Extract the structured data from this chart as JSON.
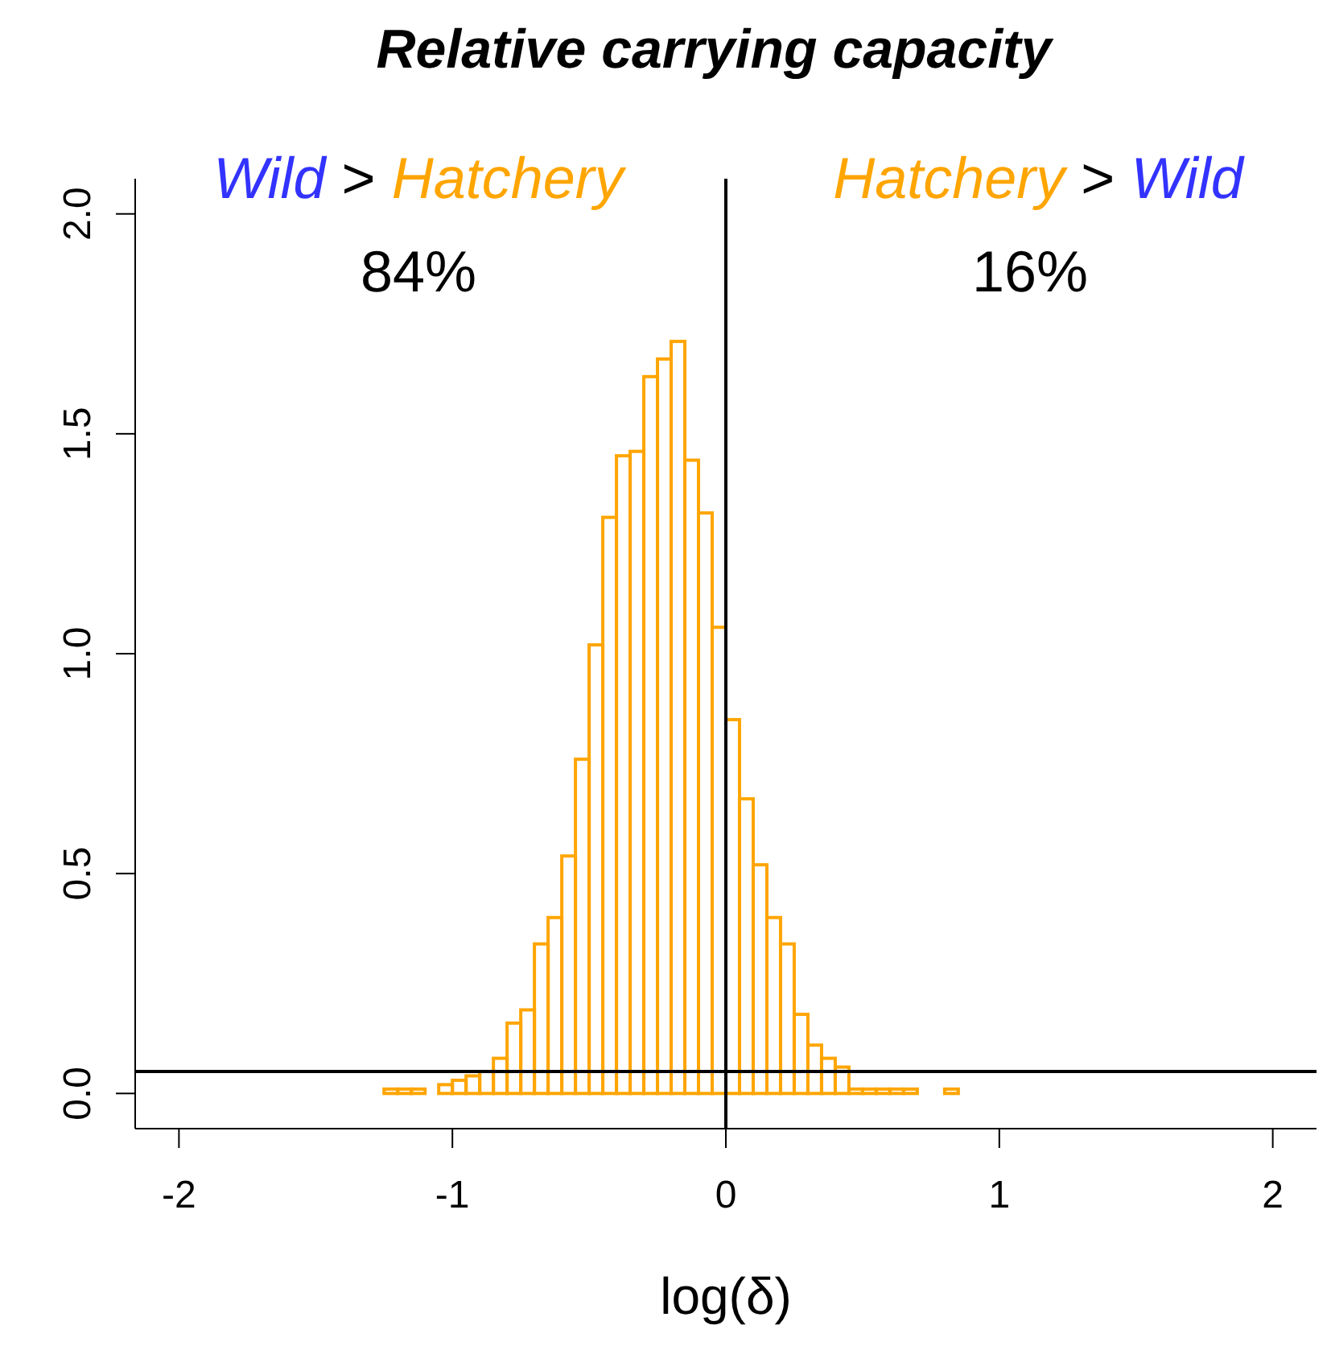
{
  "chart_data": {
    "type": "histogram",
    "title": "Relative carrying capacity",
    "xlabel": "log(δ)",
    "bins": [
      -1.25,
      -1.2,
      -1.15,
      -1.1,
      -1.05,
      -1.0,
      -0.95,
      -0.9,
      -0.85,
      -0.8,
      -0.75,
      -0.7,
      -0.65,
      -0.6,
      -0.55,
      -0.5,
      -0.45,
      -0.4,
      -0.35,
      -0.3,
      -0.25,
      -0.2,
      -0.15,
      -0.1,
      -0.05,
      0,
      0.05,
      0.1,
      0.15,
      0.2,
      0.25,
      0.3,
      0.35,
      0.4,
      0.45,
      0.5,
      0.55,
      0.6,
      0.65,
      0.7,
      0.75,
      0.8,
      0.85
    ],
    "values": [
      0.01,
      0.01,
      0.01,
      0,
      0.02,
      0.03,
      0.04,
      0.05,
      0.08,
      0.16,
      0.19,
      0.34,
      0.4,
      0.54,
      0.76,
      1.02,
      1.31,
      1.45,
      1.46,
      1.63,
      1.67,
      1.71,
      1.44,
      1.32,
      1.06,
      0.85,
      0.67,
      0.52,
      0.4,
      0.34,
      0.18,
      0.11,
      0.08,
      0.06,
      0.01,
      0.01,
      0.01,
      0.01,
      0.01,
      0,
      0,
      0.01
    ],
    "color": "#ffa500",
    "xlim": [
      -2.16,
      2.16
    ],
    "xticks": [
      -2,
      -1,
      0,
      1,
      2
    ],
    "ylim": [
      -0.08,
      2.08
    ],
    "yticks": [
      {
        "value": 0,
        "label": "0.0"
      },
      {
        "value": 0.5,
        "label": "0.5"
      },
      {
        "value": 1,
        "label": "1.0"
      },
      {
        "value": 1.5,
        "label": "1.5"
      },
      {
        "value": 2,
        "label": "2.0"
      }
    ],
    "ref_lines": [
      {
        "axis": "x",
        "value": 0,
        "color": "#000000"
      },
      {
        "axis": "y",
        "value": 0.05,
        "color": "#000000"
      }
    ],
    "annotations": [
      "Wild > Hatchery",
      "84%",
      "Hatchery > Wild",
      "16%"
    ],
    "grid": false
  }
}
